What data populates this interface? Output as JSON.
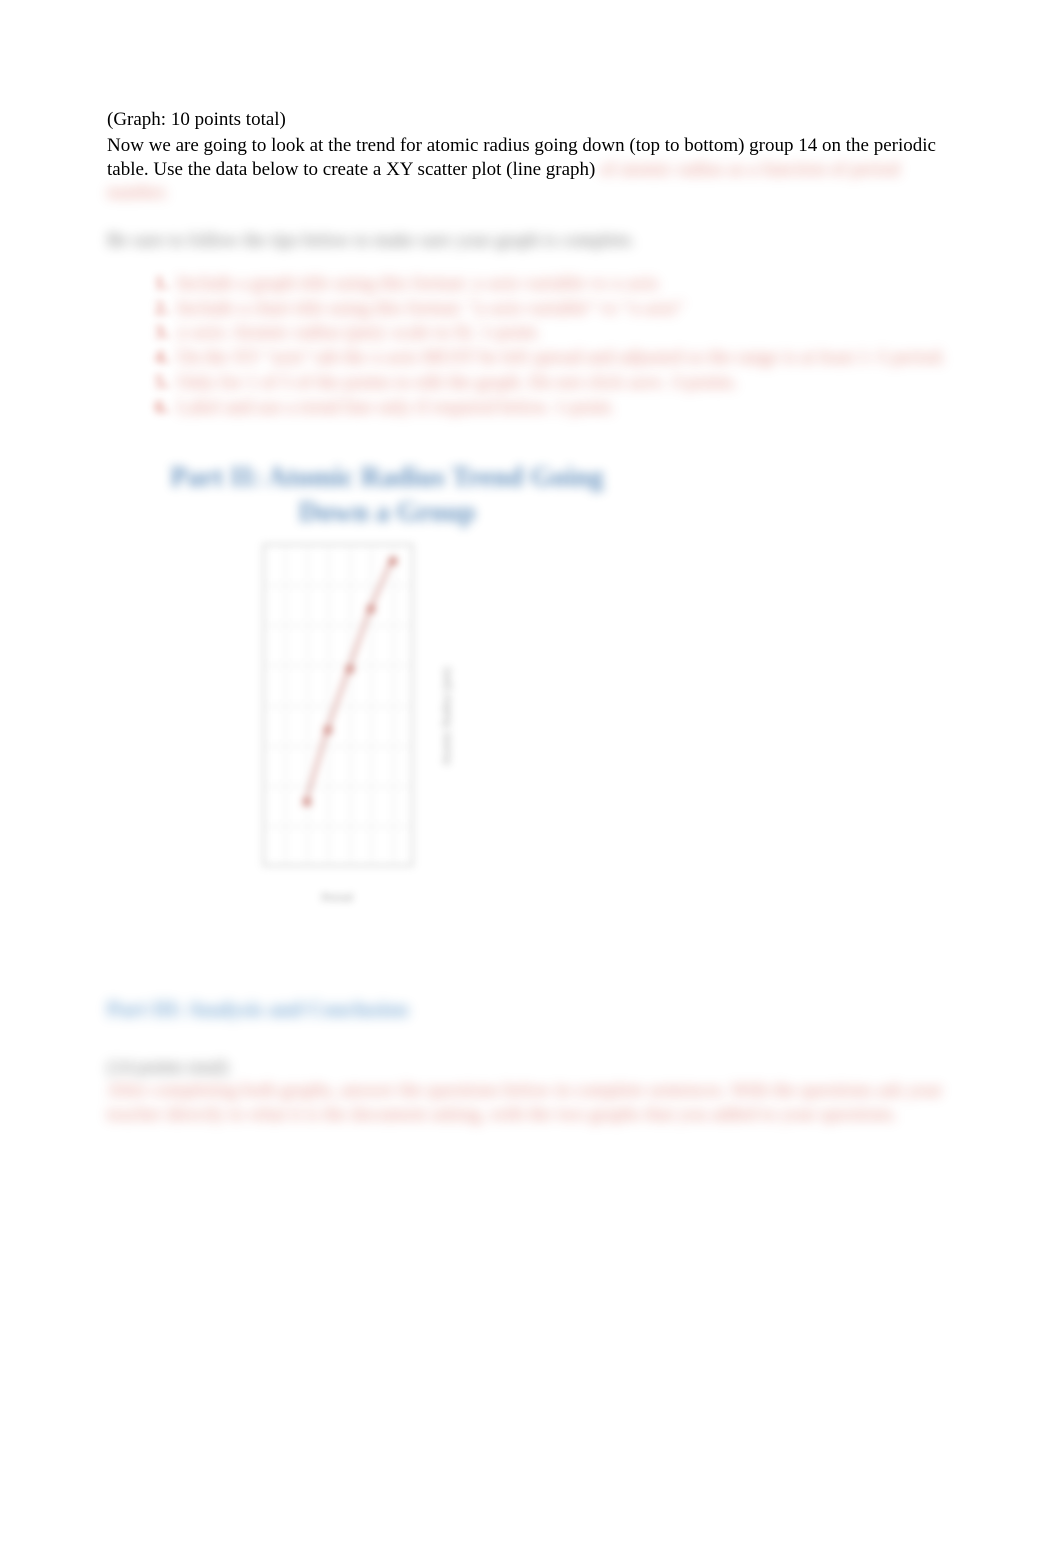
{
  "intro": {
    "points_line": "(Graph: 10 points total)",
    "paragraph_visible": "Now we are going to look at the trend for atomic radius going down (top to bottom) group 14 on the periodic table. Use the data below to create a XY scatter plot (line graph)",
    "paragraph_blurred_tail": "of atomic radius as a function of period number."
  },
  "tips_line": "Be sure to follow the tips below to make sure your graph is complete.",
  "list": [
    "Include a graph title using this format: y-axis variable vs x-axis",
    "Include a chart title using this format:  \"y-axis variable\" vs \"x-axis\"",
    "y-axis: Atomic radius (pm): scale to fit. 1-point.",
    "On the XY \"axis\" tab the x-axis MUST be left spread and adjusted so the range is at least 1–5 period.",
    "Only for 1 of 5 of the points to edit the graph. Do not click save. 3-points.",
    "Label and use a trend line only if required below. 1-point."
  ],
  "list_numbers": [
    "1.",
    "2.",
    "3.",
    "4.",
    "5.",
    "6."
  ],
  "chart": {
    "title_line1": "Part II: Atomic Radius Trend Going",
    "title_line2": "Down a Group",
    "type": "scatter-line",
    "background_color": "#ffffff",
    "grid_color": "#aaaaaa",
    "border_color": "#7a7a7a",
    "point_color": "#b03a2e",
    "line_color": "#b03a2e",
    "xlabel": "Period",
    "ylabel": "Atomic Radius (pm)",
    "xlim": [
      0,
      7
    ],
    "ylim": [
      0,
      160
    ],
    "xtick_step": 1,
    "ytick_step": 20,
    "x_values": [
      2,
      3,
      4,
      5,
      6
    ],
    "y_values": [
      32,
      68,
      98,
      128,
      152
    ],
    "title_fontsize": 28,
    "title_color": "#2e6ba8",
    "label_fontsize": 12
  },
  "part3": {
    "heading": "Part III: Analysis and Conclusion"
  },
  "footer": {
    "points_label": "(14 points total)",
    "paragraph": "After completing both graphs, answer the questions below in complete sentences. With the questions ask your teacher directly to what it is the document asking, with the two graphs that you added to your questions."
  }
}
